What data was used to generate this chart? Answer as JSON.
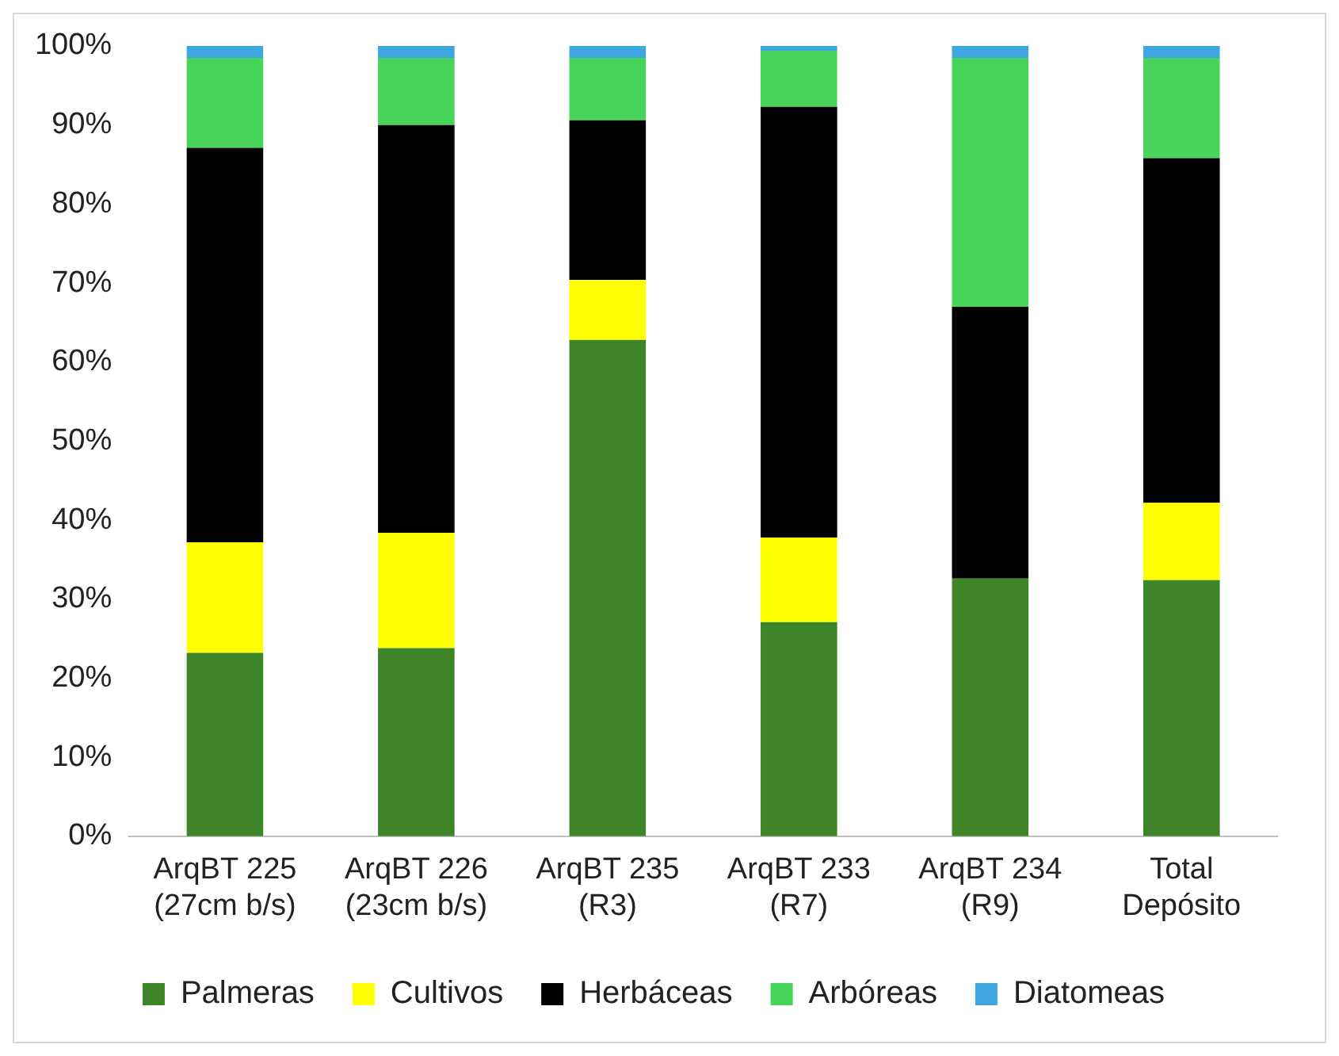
{
  "chart_data": {
    "type": "bar",
    "stacked": true,
    "categories": [
      "ArqBT 225\n(27cm b/s)",
      "ArqBT 226\n(23cm b/s)",
      "ArqBT 235\n(R3)",
      "ArqBT 233\n(R7)",
      "ArqBT 234\n(R9)",
      "Total\nDepósito"
    ],
    "series": [
      {
        "name": "Palmeras",
        "color": "#3e8428",
        "values": [
          23.2,
          23.8,
          62.8,
          27.1,
          32.6,
          32.4
        ]
      },
      {
        "name": "Cultivos",
        "color": "#ffff00",
        "values": [
          14.0,
          14.6,
          7.6,
          10.7,
          0,
          9.8
        ]
      },
      {
        "name": "Herbáceas",
        "color": "#000000",
        "values": [
          49.9,
          51.6,
          20.2,
          54.5,
          34.4,
          43.6
        ]
      },
      {
        "name": "Arbóreas",
        "color": "#47d45a",
        "values": [
          11.4,
          8.5,
          7.9,
          7.1,
          31.5,
          12.7
        ]
      },
      {
        "name": "Diatomeas",
        "color": "#3ea6e0",
        "values": [
          1.5,
          1.5,
          1.5,
          0.6,
          1.5,
          1.5
        ]
      }
    ],
    "ylim": [
      0,
      100
    ],
    "yticks": [
      {
        "value": 0,
        "label": "0%"
      },
      {
        "value": 10,
        "label": "10%"
      },
      {
        "value": 20,
        "label": "20%"
      },
      {
        "value": 30,
        "label": "30%"
      },
      {
        "value": 40,
        "label": "40%"
      },
      {
        "value": 50,
        "label": "50%"
      },
      {
        "value": 60,
        "label": "60%"
      },
      {
        "value": 70,
        "label": "70%"
      },
      {
        "value": 80,
        "label": "80%"
      },
      {
        "value": 90,
        "label": "90%"
      },
      {
        "value": 100,
        "label": "100%"
      }
    ],
    "grid": false,
    "legend": "bottom"
  }
}
